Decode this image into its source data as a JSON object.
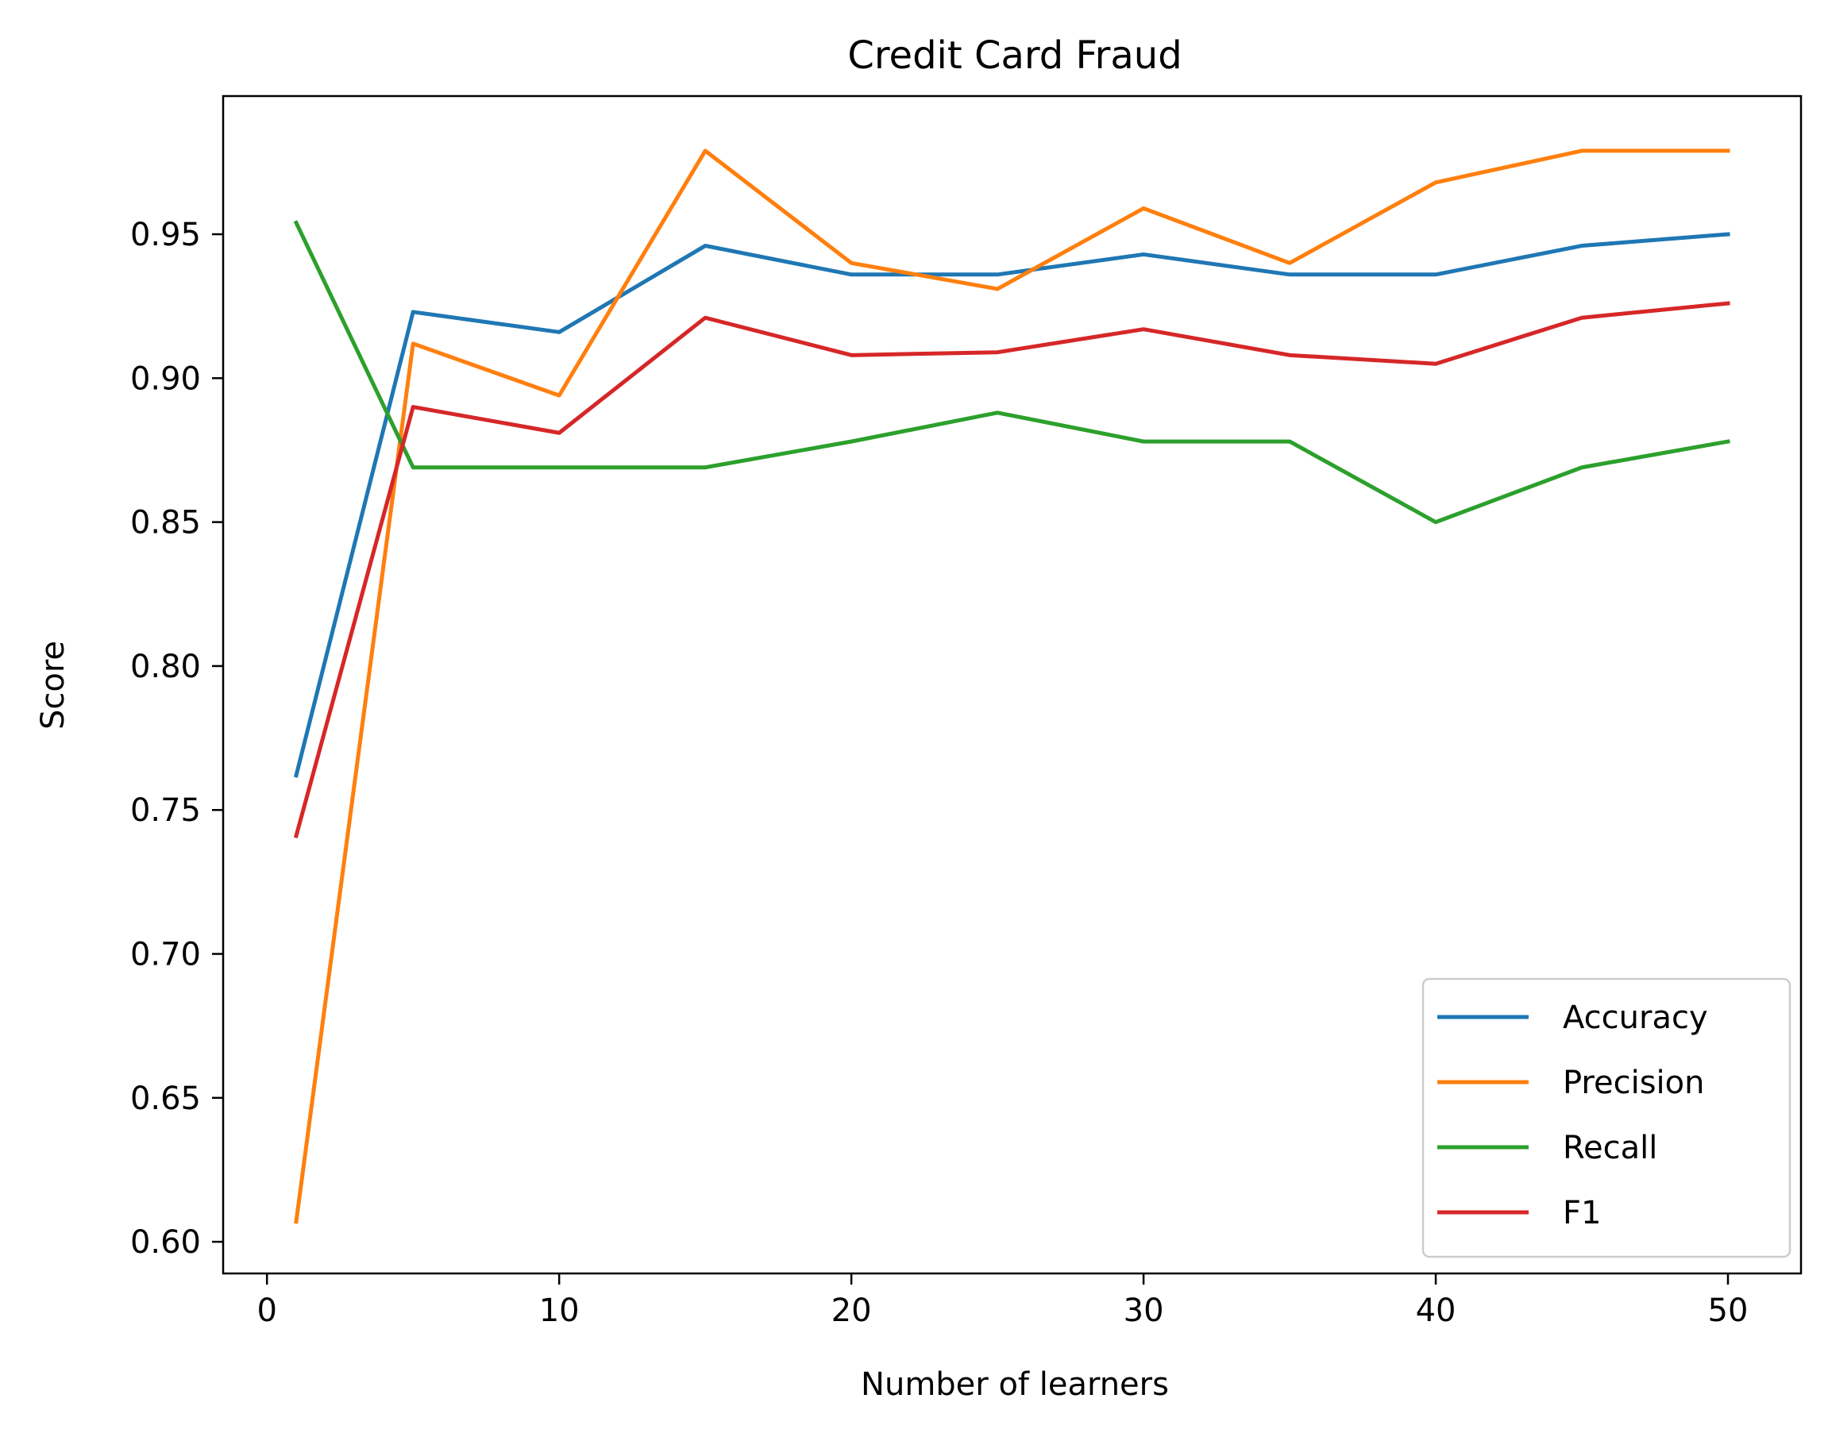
{
  "chart_data": {
    "type": "line",
    "title": "Credit Card Fraud",
    "xlabel": "Number of learners",
    "ylabel": "Score",
    "xlim": [
      -1.5,
      52.5
    ],
    "ylim": [
      0.589,
      0.998
    ],
    "xticks": [
      0,
      10,
      20,
      30,
      40,
      50
    ],
    "xtick_labels": [
      "0",
      "10",
      "20",
      "30",
      "40",
      "50"
    ],
    "yticks": [
      0.6,
      0.65,
      0.7,
      0.75,
      0.8,
      0.85,
      0.9,
      0.95
    ],
    "ytick_labels": [
      "0.60",
      "0.65",
      "0.70",
      "0.75",
      "0.80",
      "0.85",
      "0.90",
      "0.95"
    ],
    "grid": false,
    "legend_position": "lower-right",
    "x": [
      1,
      5,
      10,
      15,
      20,
      25,
      30,
      35,
      40,
      45,
      50
    ],
    "series": [
      {
        "name": "Accuracy",
        "color": "#1f77b4",
        "values": [
          0.762,
          0.923,
          0.916,
          0.946,
          0.936,
          0.936,
          0.943,
          0.936,
          0.936,
          0.946,
          0.95
        ]
      },
      {
        "name": "Precision",
        "color": "#ff7f0e",
        "values": [
          0.607,
          0.912,
          0.894,
          0.979,
          0.94,
          0.931,
          0.959,
          0.94,
          0.968,
          0.979,
          0.979
        ]
      },
      {
        "name": "Recall",
        "color": "#2ca02c",
        "values": [
          0.954,
          0.869,
          0.869,
          0.869,
          0.878,
          0.888,
          0.878,
          0.878,
          0.85,
          0.869,
          0.878
        ]
      },
      {
        "name": "F1",
        "color": "#d62728",
        "values": [
          0.741,
          0.89,
          0.881,
          0.921,
          0.908,
          0.909,
          0.917,
          0.908,
          0.905,
          0.921,
          0.926
        ]
      }
    ]
  }
}
